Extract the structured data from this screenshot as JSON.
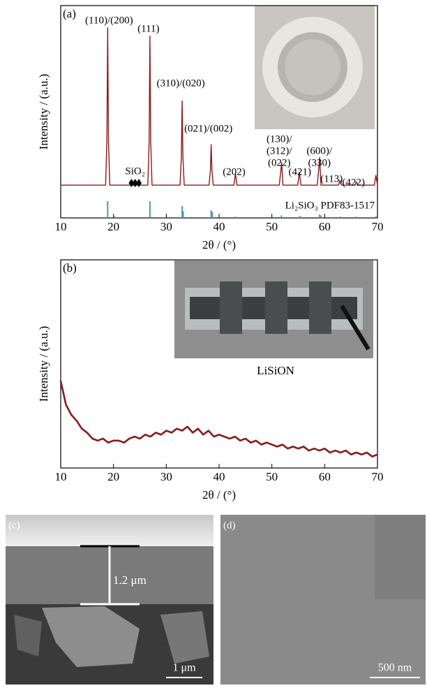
{
  "chart_data": [
    {
      "type": "line",
      "panel_label": "(a)",
      "x_label": "2θ / (°)",
      "y_label": "Intensity / (a.u.)",
      "xlim": [
        10,
        70
      ],
      "xticks": [
        10,
        20,
        30,
        40,
        50,
        60,
        70
      ],
      "ylim": [
        0,
        100
      ],
      "series": [
        {
          "color": "#8b1a1a",
          "x": [
            10,
            18.5,
            18.75,
            18.9,
            19.05,
            19.3,
            26.5,
            26.75,
            26.9,
            27.05,
            27.3,
            32.6,
            32.85,
            33.0,
            33.15,
            33.4,
            38.1,
            38.35,
            38.5,
            38.65,
            38.9,
            42.8,
            43.1,
            43.4,
            51.4,
            51.7,
            51.85,
            52.1,
            54.9,
            55.2,
            55.5,
            58.6,
            58.9,
            59.05,
            59.3,
            62.6,
            62.9,
            63.2,
            65.7,
            66.0,
            66.3,
            69.4,
            69.7,
            70
          ],
          "values": [
            3,
            3,
            30,
            100,
            30,
            3,
            3,
            30,
            95,
            30,
            3,
            3,
            20,
            55,
            20,
            3,
            3,
            12,
            28,
            12,
            3,
            3,
            10,
            3,
            3,
            12,
            17,
            3,
            3,
            11,
            3,
            3,
            14,
            20,
            3,
            3,
            6,
            3,
            3,
            5,
            3,
            3,
            9,
            3
          ]
        },
        {
          "type": "stick",
          "name": "Li₂SiO₃ PDF83-1517",
          "color": "#4a9bb0",
          "x": [
            18.9,
            20.2,
            26.9,
            33.0,
            33.2,
            38.5,
            38.7,
            43.1,
            51.8,
            55.3,
            59.0,
            59.3,
            63.0,
            66.0,
            69.7
          ],
          "values": [
            100,
            10,
            100,
            70,
            40,
            45,
            35,
            8,
            15,
            12,
            20,
            15,
            8,
            8,
            10
          ]
        }
      ],
      "sio2_markers": {
        "label": "SiO₂",
        "x": [
          23.4,
          24.1,
          24.8
        ]
      },
      "annotations": [
        {
          "x": 18.9,
          "lines": [
            "(110)/(200)"
          ]
        },
        {
          "x": 26.9,
          "lines": [
            "(111)"
          ]
        },
        {
          "x": 33.0,
          "lines": [
            "(310)/(020)"
          ]
        },
        {
          "x": 38.5,
          "lines": [
            "(021)/(002)"
          ]
        },
        {
          "x": 43.1,
          "lines": [
            "(202)"
          ]
        },
        {
          "x": 51.8,
          "lines": [
            "(130)/",
            "(312)/",
            "(022)"
          ]
        },
        {
          "x": 55.3,
          "lines": [
            "(421)"
          ]
        },
        {
          "x": 59.0,
          "lines": [
            "(600)/",
            "(330)"
          ]
        },
        {
          "x": 62.9,
          "lines": [
            "(113)"
          ]
        },
        {
          "x": 66.0,
          "lines": [
            "(422)"
          ]
        }
      ]
    },
    {
      "type": "line",
      "panel_label": "(b)",
      "x_label": "2θ / (°)",
      "y_label": "Intensity / (a.u.)",
      "inset_caption": "LiSiON",
      "xlim": [
        10,
        70
      ],
      "xticks": [
        10,
        20,
        30,
        40,
        50,
        60,
        70
      ],
      "ylim": [
        0,
        100
      ],
      "series": [
        {
          "color": "#8b1a1a",
          "x": [
            10,
            11,
            12,
            13,
            14,
            15,
            16,
            17,
            18,
            19,
            20,
            21,
            22,
            23,
            24,
            25,
            26,
            27,
            28,
            29,
            30,
            31,
            32,
            33,
            34,
            35,
            36,
            37,
            38,
            39,
            40,
            41,
            42,
            43,
            44,
            45,
            46,
            47,
            48,
            49,
            50,
            51,
            52,
            53,
            54,
            55,
            56,
            57,
            58,
            59,
            60,
            61,
            62,
            63,
            64,
            65,
            66,
            67,
            68,
            69,
            70
          ],
          "values": [
            42,
            30,
            25,
            22,
            18,
            16,
            13,
            12,
            13,
            11,
            12,
            12,
            11,
            13,
            14,
            13,
            15,
            14,
            16,
            15,
            17,
            16,
            18,
            17,
            19,
            16,
            18,
            15,
            17,
            14,
            15,
            14,
            13,
            14,
            12,
            13,
            11,
            12,
            10,
            11,
            10,
            9,
            10,
            8,
            9,
            8,
            9,
            7,
            8,
            7,
            8,
            6,
            7,
            6,
            7,
            5,
            6,
            5,
            6,
            4,
            5
          ]
        }
      ]
    }
  ],
  "panels": [
    {
      "label": "(c)",
      "thickness_label": "1.2 μm",
      "scale_bar": "1 μm"
    },
    {
      "label": "(d)",
      "scale_bar": "500 nm"
    }
  ]
}
